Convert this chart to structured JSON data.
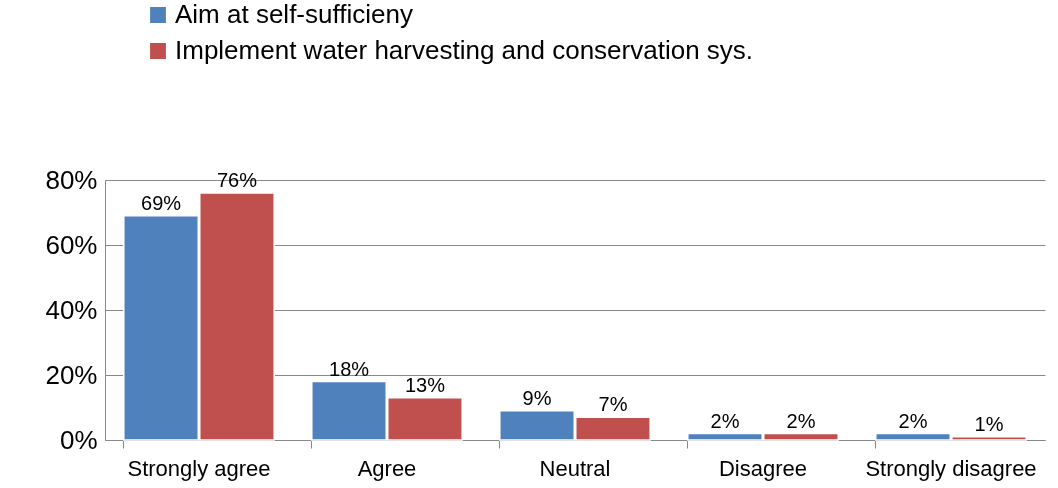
{
  "chart_data": {
    "type": "bar",
    "categories": [
      "Strongly agree",
      "Agree",
      "Neutral",
      "Disagree",
      "Strongly disagree"
    ],
    "series": [
      {
        "name": "Aim at self-sufficieny",
        "color": "#4f81bd",
        "values": [
          69,
          18,
          9,
          2,
          2
        ],
        "value_labels": [
          "69%",
          "18%",
          "9%",
          "2%",
          "2%"
        ]
      },
      {
        "name": "Implement water harvesting and conservation sys.",
        "color": "#c0504d",
        "values": [
          76,
          13,
          7,
          2,
          1
        ],
        "value_labels": [
          "76%",
          "13%",
          "7%",
          "2%",
          "1%"
        ]
      }
    ],
    "ylim": [
      0,
      80
    ],
    "yticks": [
      {
        "value": 0,
        "label": "0%"
      },
      {
        "value": 20,
        "label": "20%"
      },
      {
        "value": 40,
        "label": "40%"
      },
      {
        "value": 60,
        "label": "60%"
      },
      {
        "value": 80,
        "label": "80%"
      }
    ],
    "grid": "y",
    "legend": "top left"
  }
}
